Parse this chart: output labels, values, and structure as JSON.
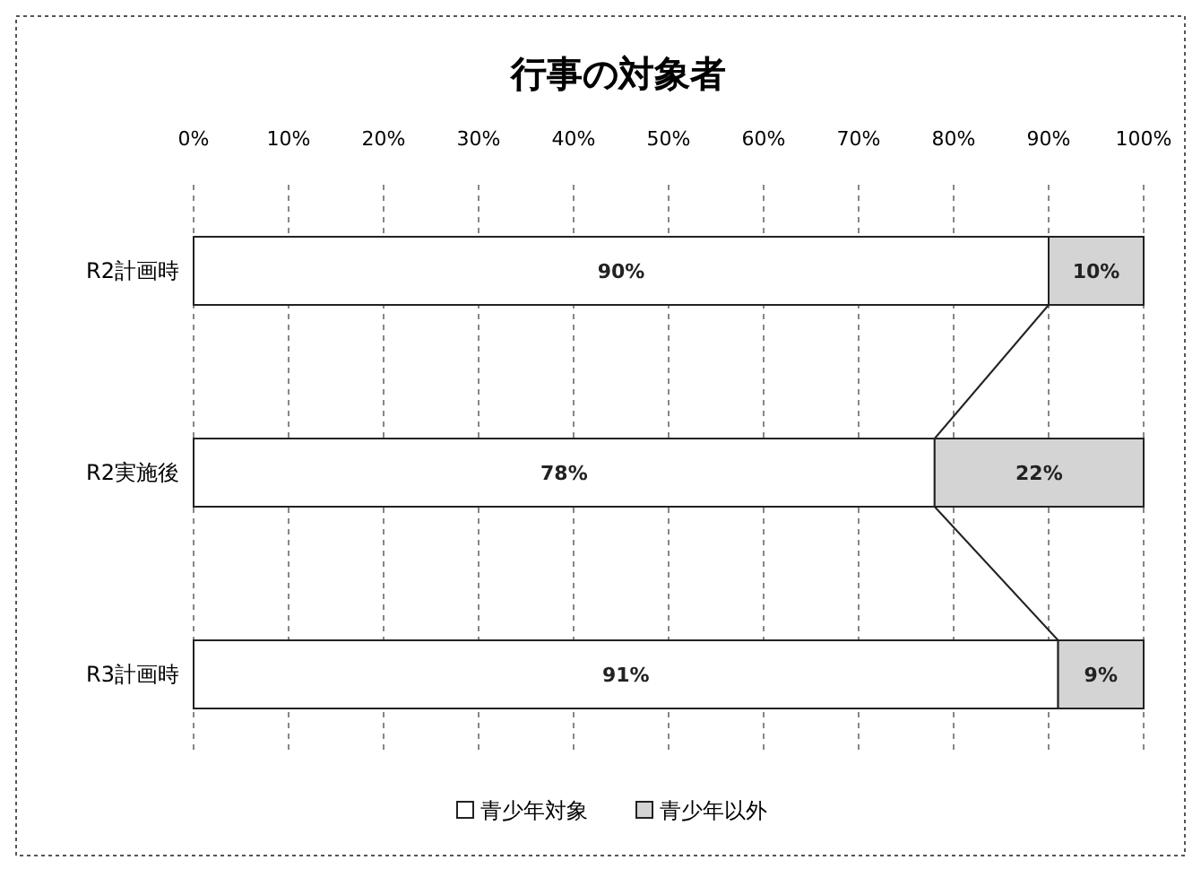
{
  "chart_data": {
    "type": "bar",
    "title": "行事の対象者",
    "orientation": "horizontal",
    "stacked": true,
    "categories": [
      "R2計画時",
      "R2実施後",
      "R3計画時"
    ],
    "series": [
      {
        "name": "青少年対象",
        "color": "#ffffff",
        "values": [
          90,
          78,
          91
        ],
        "value_labels": [
          "90%",
          "78%",
          "91%"
        ]
      },
      {
        "name": "青少年以外",
        "color": "#d4d4d4",
        "values": [
          10,
          22,
          9
        ],
        "value_labels": [
          "10%",
          "22%",
          "9%"
        ]
      }
    ],
    "xlim": [
      0,
      100
    ],
    "xticks": [
      {
        "value": 0,
        "label": "0%"
      },
      {
        "value": 10,
        "label": "10%"
      },
      {
        "value": 20,
        "label": "20%"
      },
      {
        "value": 30,
        "label": "30%"
      },
      {
        "value": 40,
        "label": "40%"
      },
      {
        "value": 50,
        "label": "50%"
      },
      {
        "value": 60,
        "label": "60%"
      },
      {
        "value": 70,
        "label": "70%"
      },
      {
        "value": 80,
        "label": "80%"
      },
      {
        "value": 90,
        "label": "90%"
      },
      {
        "value": 100,
        "label": "100%"
      }
    ],
    "grid": "x",
    "legend": "bottom"
  }
}
